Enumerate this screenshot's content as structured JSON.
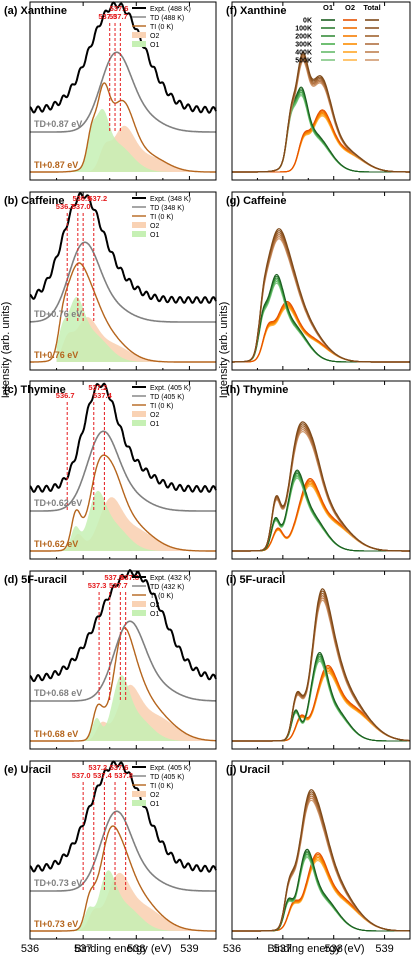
{
  "ylabel_left": "Intensity (arb. units)",
  "ylabel_right": "Intensity (arb. units)",
  "xlabel": "Binding energy (eV)",
  "xticks": [
    "536",
    "537",
    "538",
    "539"
  ],
  "colors": {
    "expt": "#000000",
    "td": "#808080",
    "ti": "#b5651d",
    "o2_fill": "#f9d2b4",
    "o1_fill": "#c6f0b4",
    "shift_td": "#808080",
    "shift_ti": "#b5651d",
    "peak_label": "#e41a1c",
    "o1_temps": [
      "#1b5e20",
      "#2e7d32",
      "#388e3c",
      "#4caf50",
      "#66bb6a",
      "#81c784"
    ],
    "o2_temps": [
      "#e65100",
      "#ef6c00",
      "#f57c00",
      "#fb8c00",
      "#ffa726",
      "#ffb74d"
    ],
    "tot_temps": [
      "#7f4a1a",
      "#8d5524",
      "#a0632e",
      "#b07040",
      "#c08050",
      "#d09a70"
    ]
  },
  "temp_legend": {
    "headers": [
      "O1",
      "O2",
      "Total"
    ],
    "temps": [
      "0K",
      "100K",
      "200K",
      "300K",
      "400K",
      "500K"
    ]
  },
  "chart_data": [
    {
      "type": "line",
      "panel": "(a)",
      "molecule": "Xanthine",
      "legend": [
        "Expt. (488 K)",
        "TD (488 K)",
        "TI (0 K)",
        "O2",
        "O1"
      ],
      "shift_td": "TD+0.87 eV",
      "shift_ti": "TI+0.87 eV",
      "peak_labels": [
        {
          "text": "537.5",
          "x": 537.5
        },
        {
          "text": "537.6",
          "x": 537.6
        },
        {
          "text": "537.7",
          "x": 537.7
        }
      ],
      "x_range": [
        536.0,
        539.5
      ]
    },
    {
      "type": "line",
      "panel": "(b)",
      "molecule": "Caffeine",
      "legend": [
        "Expt. (348 K)",
        "TD (348 K)",
        "TI (0 K)",
        "O2",
        "O1"
      ],
      "shift_td": "TD+0.76 eV",
      "shift_ti": "TI+0.76 eV",
      "peak_labels": [
        {
          "text": "536.7",
          "x": 536.7
        },
        {
          "text": "536.9",
          "x": 536.9
        },
        {
          "text": "537.0",
          "x": 537.0
        },
        {
          "text": "537.2",
          "x": 537.2
        }
      ],
      "x_range": [
        536.0,
        539.5
      ]
    },
    {
      "type": "line",
      "panel": "(c)",
      "molecule": "Thymine",
      "legend": [
        "Expt. (405 K)",
        "TD (405 K)",
        "TI (0 K)",
        "O2",
        "O1"
      ],
      "shift_td": "TD+0.62 eV",
      "shift_ti": "TI+0.62 eV",
      "peak_labels": [
        {
          "text": "536.7",
          "x": 536.7
        },
        {
          "text": "537.2",
          "x": 537.2
        },
        {
          "text": "537.4",
          "x": 537.4
        }
      ],
      "x_range": [
        536.0,
        539.5
      ]
    },
    {
      "type": "line",
      "panel": "(d)",
      "molecule": "5F-uracil",
      "legend": [
        "Expt. (432 K)",
        "TD (432 K)",
        "TI (0 K)",
        "O2",
        "O1"
      ],
      "shift_td": "TD+0.68 eV",
      "shift_ti": "TI+0.68 eV",
      "peak_labels": [
        {
          "text": "537.3",
          "x": 537.3
        },
        {
          "text": "537.5",
          "x": 537.5
        },
        {
          "text": "537.7",
          "x": 537.7
        },
        {
          "text": "537.8",
          "x": 537.8
        }
      ],
      "x_range": [
        536.0,
        539.5
      ]
    },
    {
      "type": "line",
      "panel": "(e)",
      "molecule": "Uracil",
      "legend": [
        "Expt. (405 K)",
        "TD (405 K)",
        "TI (0 K)",
        "O2",
        "O1"
      ],
      "shift_td": "TD+0.73 eV",
      "shift_ti": "TI+0.73 eV",
      "peak_labels": [
        {
          "text": "537.0",
          "x": 537.0
        },
        {
          "text": "537.2",
          "x": 537.2
        },
        {
          "text": "537.4",
          "x": 537.4
        },
        {
          "text": "537.6",
          "x": 537.6
        },
        {
          "text": "537.8",
          "x": 537.8
        }
      ],
      "x_range": [
        536.0,
        539.5
      ]
    },
    {
      "type": "line",
      "panel": "(f)",
      "molecule": "Xanthine",
      "x_range": [
        536.0,
        539.5
      ]
    },
    {
      "type": "line",
      "panel": "(g)",
      "molecule": "Caffeine",
      "x_range": [
        536.0,
        539.5
      ]
    },
    {
      "type": "line",
      "panel": "(h)",
      "molecule": "Thymine",
      "x_range": [
        536.0,
        539.5
      ]
    },
    {
      "type": "line",
      "panel": "(i)",
      "molecule": "5F-uracil",
      "x_range": [
        536.0,
        539.5
      ]
    },
    {
      "type": "line",
      "panel": "(j)",
      "molecule": "Uracil",
      "x_range": [
        536.0,
        539.5
      ]
    }
  ]
}
